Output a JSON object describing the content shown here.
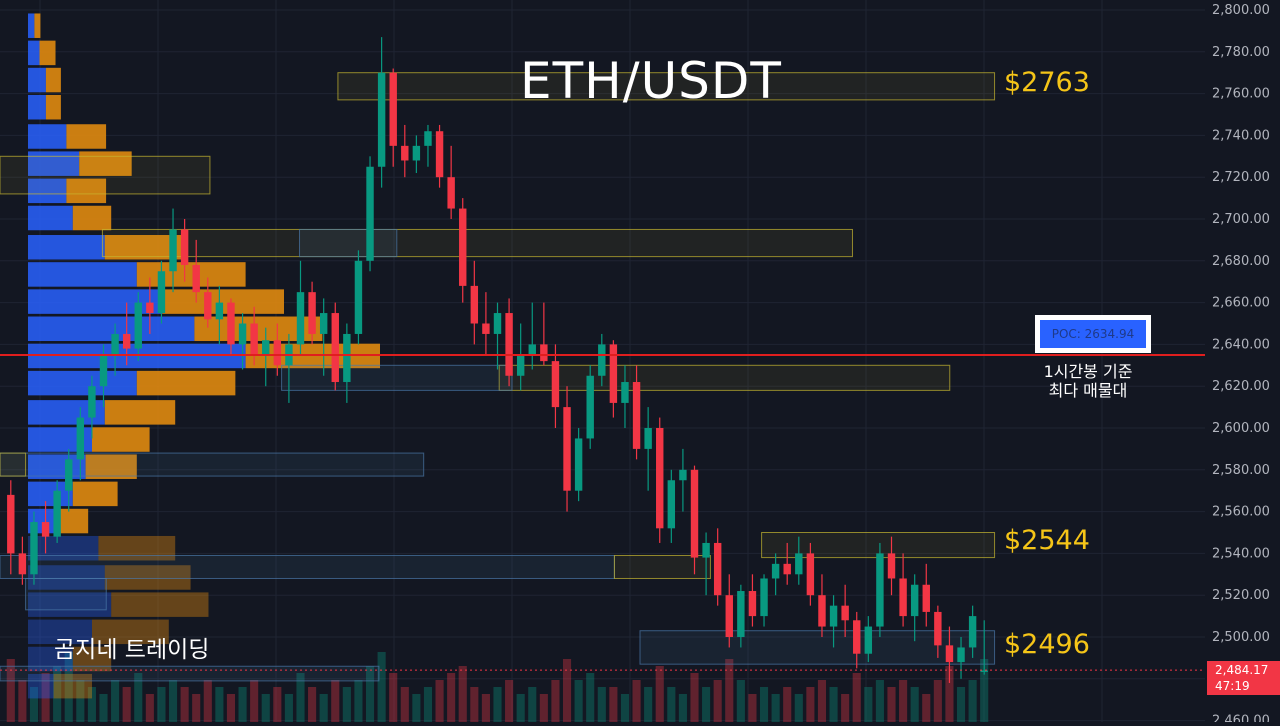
{
  "chart_data": {
    "type": "candlestick",
    "title": "ETH/USDT",
    "watermark": "곰지네 트레이딩",
    "y_axis": {
      "side": "right",
      "range": [
        2455,
        2800
      ],
      "tick_step": 20,
      "tick_labels": [
        "2,800.00",
        "2,780.00",
        "2,760.00",
        "2,740.00",
        "2,720.00",
        "2,700.00",
        "2,680.00",
        "2,660.00",
        "2,640.00",
        "2,620.00",
        "2,600.00",
        "2,580.00",
        "2,560.00",
        "2,540.00",
        "2,520.00",
        "2,500.00",
        "2,480.00",
        "2,460.00"
      ]
    },
    "grid": true,
    "colors": {
      "up": "#089981",
      "down": "#f23645",
      "poc_line": "#e01e1e",
      "level_label": "#f5c518",
      "volume_profile_up": "#2962ff",
      "volume_profile_down": "#e0890f"
    },
    "price_levels": [
      {
        "label": "$2763",
        "price": 2763
      },
      {
        "label": "$2544",
        "price": 2544
      },
      {
        "label": "$2496",
        "price": 2496
      }
    ],
    "poc": {
      "label": "POC: 2634.94",
      "price": 2634.94,
      "note_line1": "1시간봉 기준",
      "note_line2": "최다 매물대"
    },
    "last_price": {
      "value": "2,484.17",
      "countdown": "47:19",
      "price": 2484.17
    },
    "zones": [
      {
        "type": "supply",
        "low": 2757,
        "high": 2770,
        "x_start": 0.264,
        "x_end": 0.777
      },
      {
        "type": "supply",
        "low": 2712,
        "high": 2730,
        "x_start": 0.0,
        "x_end": 0.164
      },
      {
        "type": "supply",
        "low": 2682,
        "high": 2695,
        "x_start": 0.08,
        "x_end": 0.666
      },
      {
        "type": "demand",
        "low": 2682,
        "high": 2695,
        "x_start": 0.234,
        "x_end": 0.31
      },
      {
        "type": "supply",
        "low": 2618,
        "high": 2630,
        "x_start": 0.39,
        "x_end": 0.742
      },
      {
        "type": "demand",
        "low": 2618,
        "high": 2630,
        "x_start": 0.22,
        "x_end": 0.4
      },
      {
        "type": "demand",
        "low": 2577,
        "high": 2588,
        "x_start": 0.0,
        "x_end": 0.331
      },
      {
        "type": "supply",
        "low": 2577,
        "high": 2588,
        "x_start": 0.0,
        "x_end": 0.02
      },
      {
        "type": "supply",
        "low": 2538,
        "high": 2550,
        "x_start": 0.595,
        "x_end": 0.777
      },
      {
        "type": "demand",
        "low": 2528,
        "high": 2539,
        "x_start": 0.0,
        "x_end": 0.48
      },
      {
        "type": "supply",
        "low": 2528,
        "high": 2539,
        "x_start": 0.48,
        "x_end": 0.555
      },
      {
        "type": "demand",
        "low": 2513,
        "high": 2528,
        "x_start": 0.02,
        "x_end": 0.083
      },
      {
        "type": "demand",
        "low": 2487,
        "high": 2503,
        "x_start": 0.5,
        "x_end": 0.777
      },
      {
        "type": "demand",
        "low": 2479,
        "high": 2486,
        "x_start": 0.0,
        "x_end": 0.296
      }
    ],
    "volume_profile": [
      {
        "price": 2792,
        "buy": 0.005,
        "sell": 0.0047
      },
      {
        "price": 2779,
        "buy": 0.009,
        "sell": 0.0125
      },
      {
        "price": 2766,
        "buy": 0.014,
        "sell": 0.0117
      },
      {
        "price": 2753,
        "buy": 0.014,
        "sell": 0.0117
      },
      {
        "price": 2739,
        "buy": 0.03,
        "sell": 0.031
      },
      {
        "price": 2726,
        "buy": 0.04,
        "sell": 0.041
      },
      {
        "price": 2713,
        "buy": 0.03,
        "sell": 0.031
      },
      {
        "price": 2700,
        "buy": 0.035,
        "sell": 0.03
      },
      {
        "price": 2686,
        "buy": 0.06,
        "sell": 0.06
      },
      {
        "price": 2673,
        "buy": 0.085,
        "sell": 0.085
      },
      {
        "price": 2660,
        "buy": 0.105,
        "sell": 0.095
      },
      {
        "price": 2647,
        "buy": 0.13,
        "sell": 0.1
      },
      {
        "price": 2634,
        "buy": 0.17,
        "sell": 0.105
      },
      {
        "price": 2621,
        "buy": 0.085,
        "sell": 0.077
      },
      {
        "price": 2607,
        "buy": 0.06,
        "sell": 0.055
      },
      {
        "price": 2594,
        "buy": 0.05,
        "sell": 0.045
      },
      {
        "price": 2581,
        "buy": 0.045,
        "sell": 0.04
      },
      {
        "price": 2568,
        "buy": 0.035,
        "sell": 0.035
      },
      {
        "price": 2555,
        "buy": 0.02,
        "sell": 0.027
      },
      {
        "price": 2542,
        "buy": 0.055,
        "sell": 0.06
      },
      {
        "price": 2528,
        "buy": 0.06,
        "sell": 0.067
      },
      {
        "price": 2515,
        "buy": 0.065,
        "sell": 0.076
      },
      {
        "price": 2502,
        "buy": 0.05,
        "sell": 0.06
      },
      {
        "price": 2489,
        "buy": 0.035,
        "sell": 0.03
      },
      {
        "price": 2476,
        "buy": 0.02,
        "sell": 0.03
      }
    ],
    "candles": [
      [
        2568,
        2575,
        2530,
        2540
      ],
      [
        2540,
        2548,
        2525,
        2530
      ],
      [
        2530,
        2560,
        2525,
        2555
      ],
      [
        2555,
        2565,
        2540,
        2548
      ],
      [
        2548,
        2575,
        2545,
        2570
      ],
      [
        2570,
        2590,
        2560,
        2585
      ],
      [
        2585,
        2610,
        2575,
        2605
      ],
      [
        2605,
        2625,
        2595,
        2620
      ],
      [
        2620,
        2640,
        2610,
        2635
      ],
      [
        2635,
        2650,
        2625,
        2645
      ],
      [
        2645,
        2660,
        2630,
        2638
      ],
      [
        2638,
        2665,
        2632,
        2660
      ],
      [
        2660,
        2672,
        2645,
        2655
      ],
      [
        2655,
        2680,
        2650,
        2675
      ],
      [
        2675,
        2705,
        2665,
        2695
      ],
      [
        2695,
        2700,
        2670,
        2678
      ],
      [
        2678,
        2690,
        2660,
        2665
      ],
      [
        2665,
        2672,
        2648,
        2652
      ],
      [
        2652,
        2668,
        2640,
        2660
      ],
      [
        2660,
        2662,
        2635,
        2640
      ],
      [
        2640,
        2655,
        2628,
        2650
      ],
      [
        2650,
        2658,
        2630,
        2635
      ],
      [
        2635,
        2648,
        2620,
        2642
      ],
      [
        2642,
        2650,
        2625,
        2630
      ],
      [
        2630,
        2645,
        2612,
        2640
      ],
      [
        2640,
        2680,
        2635,
        2665
      ],
      [
        2665,
        2670,
        2640,
        2645
      ],
      [
        2645,
        2662,
        2625,
        2655
      ],
      [
        2655,
        2660,
        2618,
        2622
      ],
      [
        2622,
        2650,
        2612,
        2645
      ],
      [
        2645,
        2685,
        2640,
        2680
      ],
      [
        2680,
        2730,
        2675,
        2725
      ],
      [
        2725,
        2787,
        2715,
        2770
      ],
      [
        2770,
        2772,
        2725,
        2735
      ],
      [
        2735,
        2745,
        2720,
        2728
      ],
      [
        2728,
        2740,
        2722,
        2735
      ],
      [
        2735,
        2745,
        2725,
        2742
      ],
      [
        2742,
        2745,
        2715,
        2720
      ],
      [
        2720,
        2735,
        2700,
        2705
      ],
      [
        2705,
        2710,
        2660,
        2668
      ],
      [
        2668,
        2680,
        2640,
        2650
      ],
      [
        2650,
        2665,
        2635,
        2645
      ],
      [
        2645,
        2660,
        2628,
        2655
      ],
      [
        2655,
        2662,
        2620,
        2625
      ],
      [
        2625,
        2650,
        2618,
        2635
      ],
      [
        2635,
        2660,
        2628,
        2640
      ],
      [
        2640,
        2660,
        2630,
        2632
      ],
      [
        2632,
        2640,
        2600,
        2610
      ],
      [
        2610,
        2620,
        2560,
        2570
      ],
      [
        2570,
        2600,
        2565,
        2595
      ],
      [
        2595,
        2630,
        2590,
        2625
      ],
      [
        2625,
        2645,
        2620,
        2640
      ],
      [
        2640,
        2642,
        2605,
        2612
      ],
      [
        2612,
        2630,
        2600,
        2622
      ],
      [
        2622,
        2630,
        2585,
        2590
      ],
      [
        2590,
        2610,
        2570,
        2600
      ],
      [
        2600,
        2605,
        2545,
        2552
      ],
      [
        2552,
        2580,
        2545,
        2575
      ],
      [
        2575,
        2590,
        2560,
        2580
      ],
      [
        2580,
        2582,
        2530,
        2538
      ],
      [
        2538,
        2550,
        2520,
        2545
      ],
      [
        2545,
        2552,
        2515,
        2520
      ],
      [
        2520,
        2530,
        2495,
        2500
      ],
      [
        2500,
        2525,
        2495,
        2522
      ],
      [
        2522,
        2530,
        2505,
        2510
      ],
      [
        2510,
        2530,
        2505,
        2528
      ],
      [
        2528,
        2540,
        2520,
        2535
      ],
      [
        2535,
        2545,
        2525,
        2530
      ],
      [
        2530,
        2548,
        2525,
        2540
      ],
      [
        2540,
        2545,
        2515,
        2520
      ],
      [
        2520,
        2530,
        2500,
        2505
      ],
      [
        2505,
        2520,
        2495,
        2515
      ],
      [
        2515,
        2525,
        2500,
        2508
      ],
      [
        2508,
        2512,
        2485,
        2492
      ],
      [
        2492,
        2510,
        2488,
        2505
      ],
      [
        2505,
        2545,
        2500,
        2540
      ],
      [
        2540,
        2548,
        2520,
        2528
      ],
      [
        2528,
        2540,
        2505,
        2510
      ],
      [
        2510,
        2530,
        2498,
        2525
      ],
      [
        2525,
        2535,
        2505,
        2512
      ],
      [
        2512,
        2515,
        2490,
        2496
      ],
      [
        2496,
        2505,
        2478,
        2488
      ],
      [
        2488,
        2500,
        2480,
        2495
      ],
      [
        2495,
        2515,
        2490,
        2510
      ],
      [
        2484,
        2508,
        2482,
        2484
      ]
    ],
    "volumes": [
      0.9,
      0.6,
      0.5,
      0.7,
      0.8,
      1.0,
      0.6,
      0.5,
      0.4,
      0.6,
      0.5,
      0.7,
      0.4,
      0.5,
      0.6,
      0.5,
      0.4,
      0.6,
      0.5,
      0.4,
      0.5,
      0.6,
      0.4,
      0.5,
      0.4,
      0.7,
      0.5,
      0.4,
      0.6,
      0.5,
      0.6,
      0.8,
      1.0,
      0.7,
      0.5,
      0.4,
      0.5,
      0.6,
      0.7,
      0.8,
      0.5,
      0.4,
      0.5,
      0.6,
      0.4,
      0.5,
      0.4,
      0.6,
      0.9,
      0.6,
      0.7,
      0.5,
      0.5,
      0.4,
      0.6,
      0.5,
      0.8,
      0.5,
      0.4,
      0.7,
      0.5,
      0.6,
      0.9,
      0.6,
      0.4,
      0.5,
      0.4,
      0.5,
      0.4,
      0.5,
      0.6,
      0.5,
      0.4,
      0.7,
      0.5,
      0.6,
      0.5,
      0.6,
      0.5,
      0.4,
      0.6,
      0.8,
      0.5,
      0.6,
      0.9
    ]
  }
}
